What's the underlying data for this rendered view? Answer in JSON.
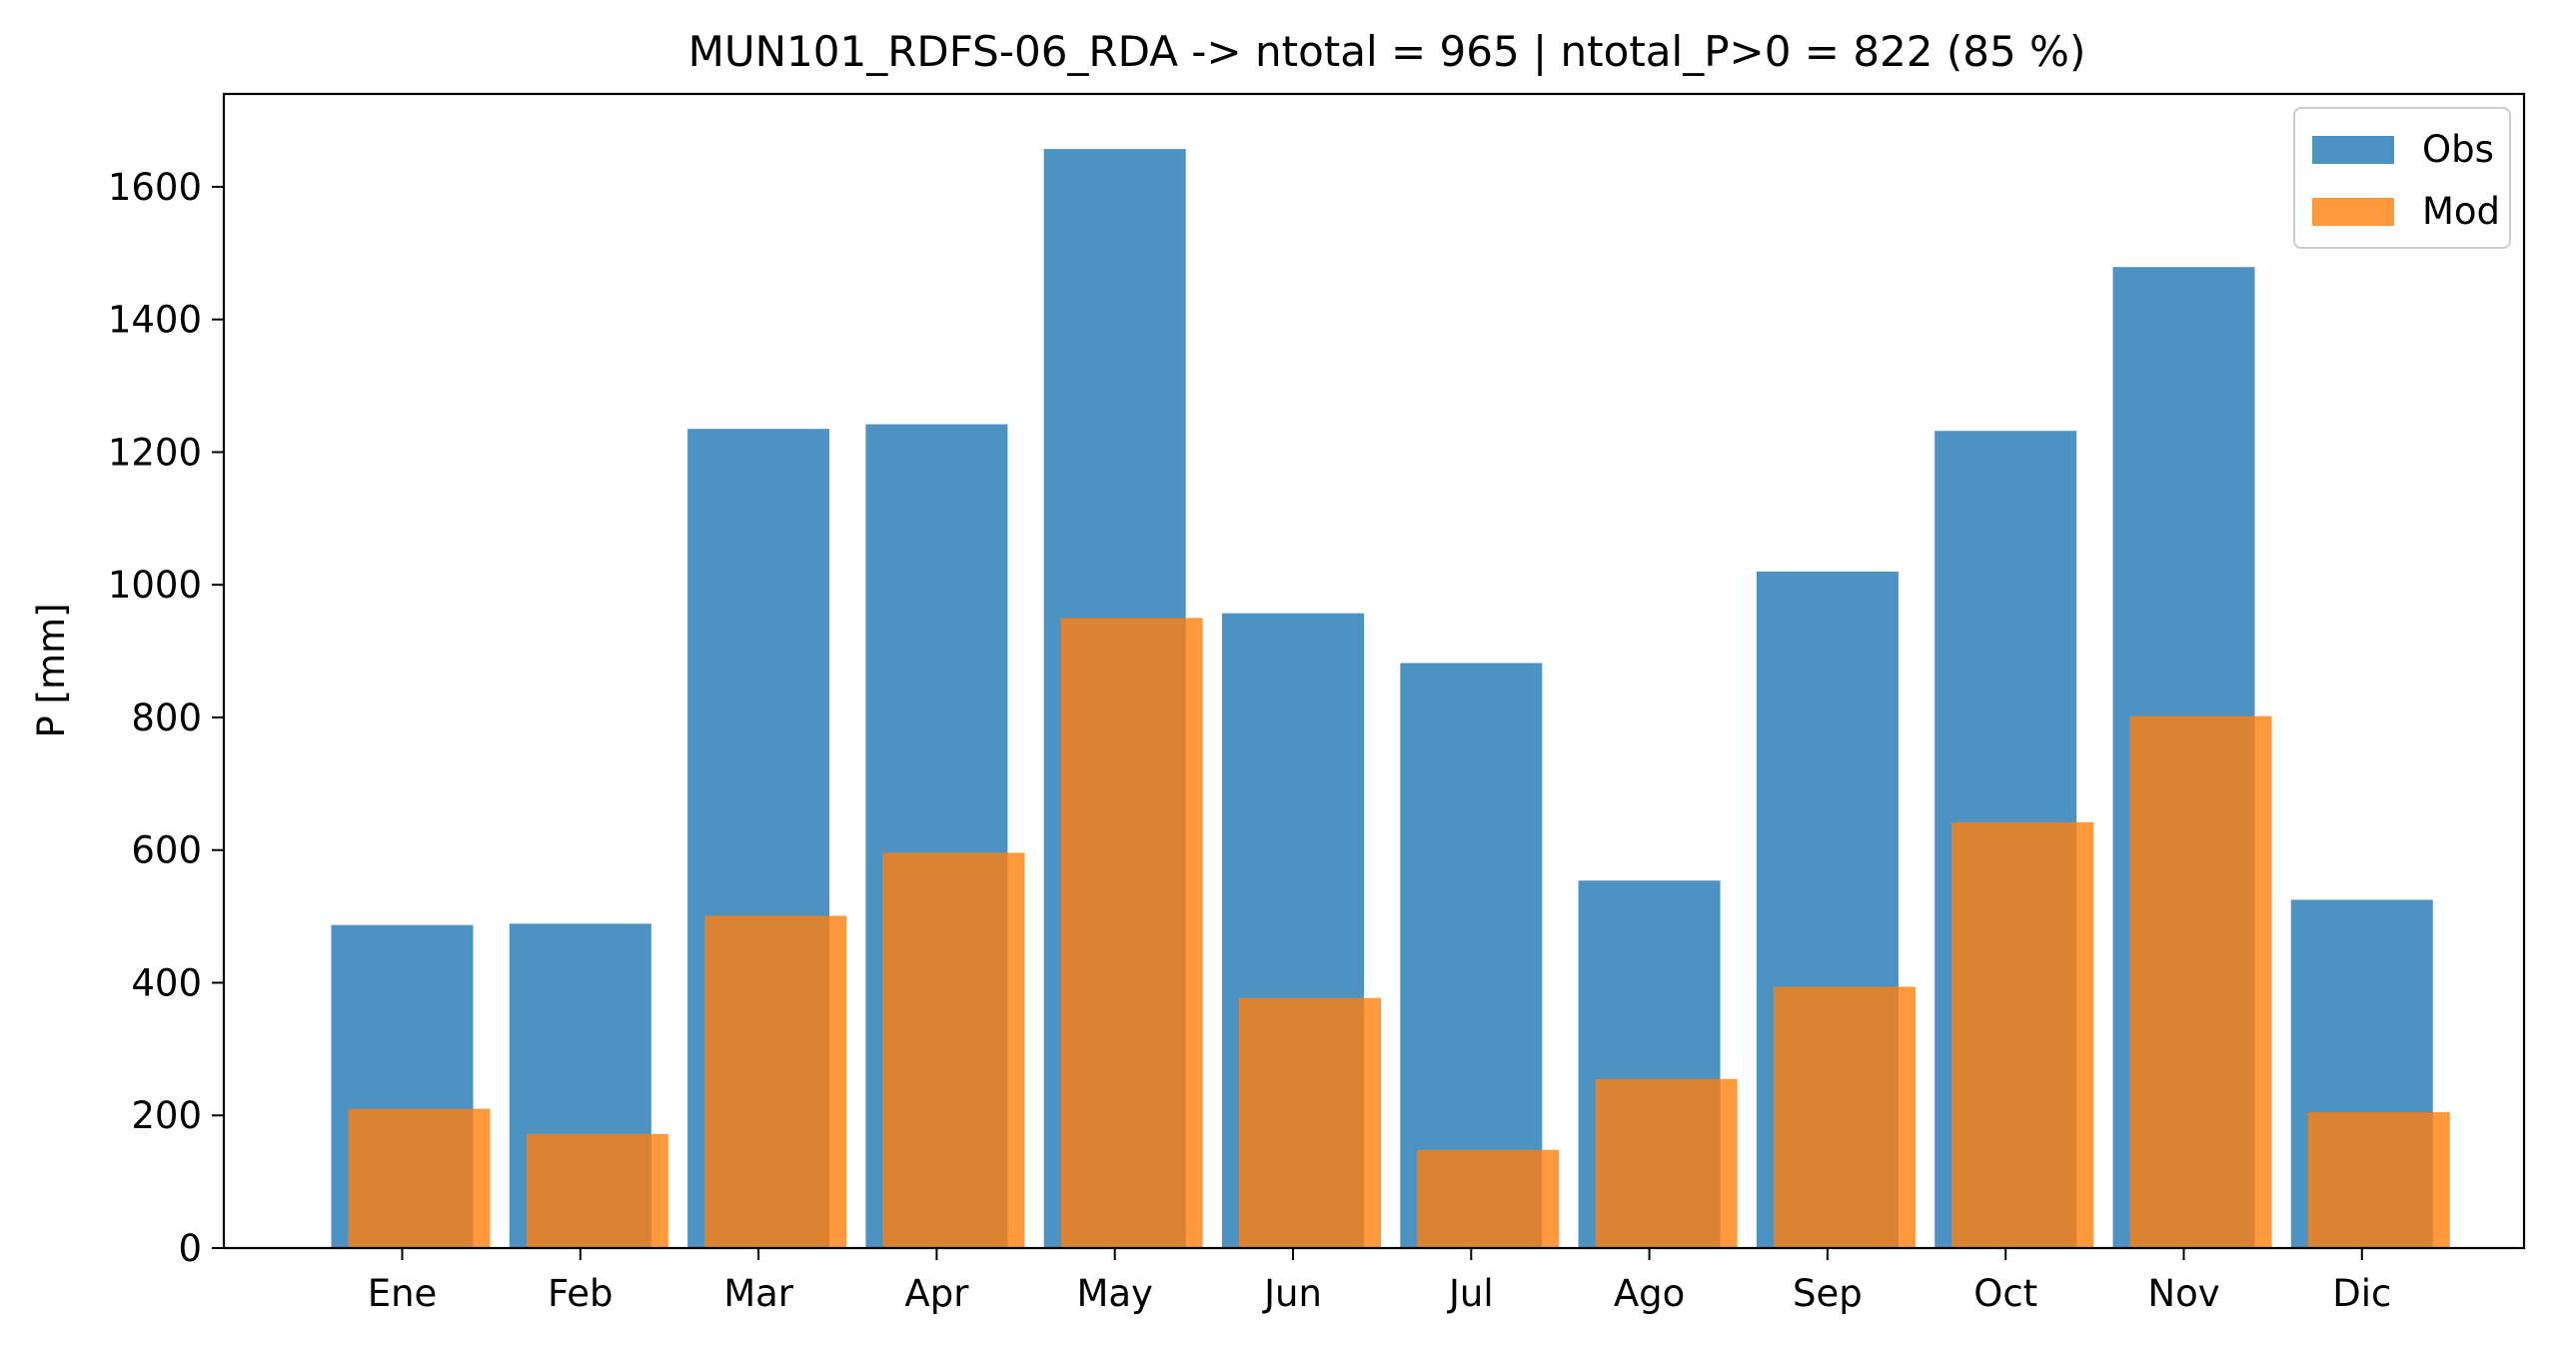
{
  "chart_data": {
    "type": "bar",
    "title": "MUN101_RDFS-06_RDA -> ntotal = 965 | ntotal_P>0 = 822 (85 %)",
    "xlabel": "",
    "ylabel": "P [mm]",
    "ylim": [
      0,
      1740
    ],
    "yticks": [
      0,
      200,
      400,
      600,
      800,
      1000,
      1200,
      1400,
      1600
    ],
    "categories": [
      "Ene",
      "Feb",
      "Mar",
      "Apr",
      "May",
      "Jun",
      "Jul",
      "Ago",
      "Sep",
      "Oct",
      "Nov",
      "Dic"
    ],
    "series": [
      {
        "name": "Obs",
        "color": "#1f77b4",
        "values": [
          487,
          489,
          1235,
          1242,
          1657,
          957,
          882,
          554,
          1020,
          1232,
          1479,
          525
        ]
      },
      {
        "name": "Mod",
        "color": "#ff7f0e",
        "values": [
          210,
          172,
          501,
          596,
          950,
          377,
          148,
          255,
          394,
          642,
          802,
          205
        ]
      }
    ],
    "grid": false,
    "legend": "upper right"
  }
}
